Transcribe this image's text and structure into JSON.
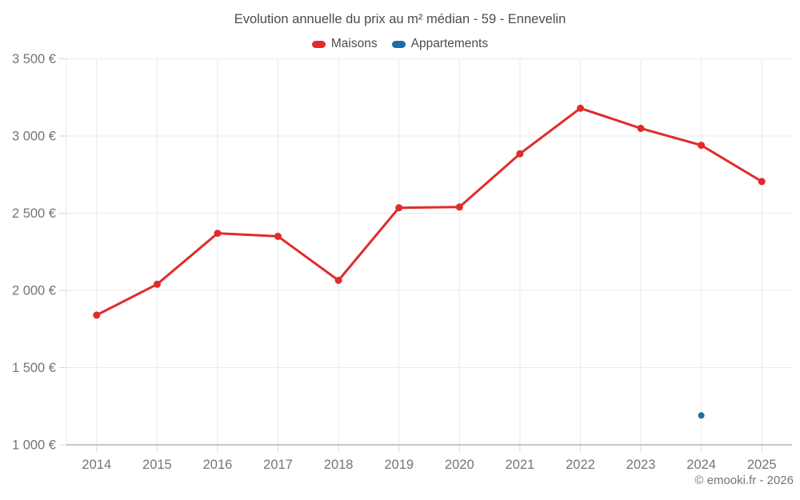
{
  "chart_data": {
    "type": "line",
    "title": "Evolution annuelle du prix au m² médian - 59 - Ennevelin",
    "x": [
      "2014",
      "2015",
      "2016",
      "2017",
      "2018",
      "2019",
      "2020",
      "2021",
      "2022",
      "2023",
      "2024",
      "2025"
    ],
    "series": [
      {
        "name": "Maisons",
        "color": "#e12b2b",
        "values": [
          1840,
          2040,
          2370,
          2350,
          2065,
          2535,
          2540,
          2885,
          3180,
          3050,
          2940,
          2705
        ]
      },
      {
        "name": "Appartements",
        "color": "#1c6ea4",
        "values": [
          null,
          null,
          null,
          null,
          null,
          null,
          null,
          null,
          null,
          null,
          1190,
          null
        ]
      }
    ],
    "xlabel": "",
    "ylabel": "",
    "ylim": [
      1000,
      3500
    ],
    "ytick_step": 500,
    "ytick_labels": [
      "1 000 €",
      "1 500 €",
      "2 000 €",
      "2 500 €",
      "3 000 €",
      "3 500 €"
    ],
    "grid": true,
    "legend_position": "top"
  },
  "footer": {
    "copyright": "© emooki.fr - 2026"
  },
  "style": {
    "grid_color": "#e9e9e9",
    "axis_color": "#b3b3b3",
    "tick_color": "#d6d6d6",
    "tick_label_color": "#757575",
    "title_color": "#4d4d4d"
  }
}
